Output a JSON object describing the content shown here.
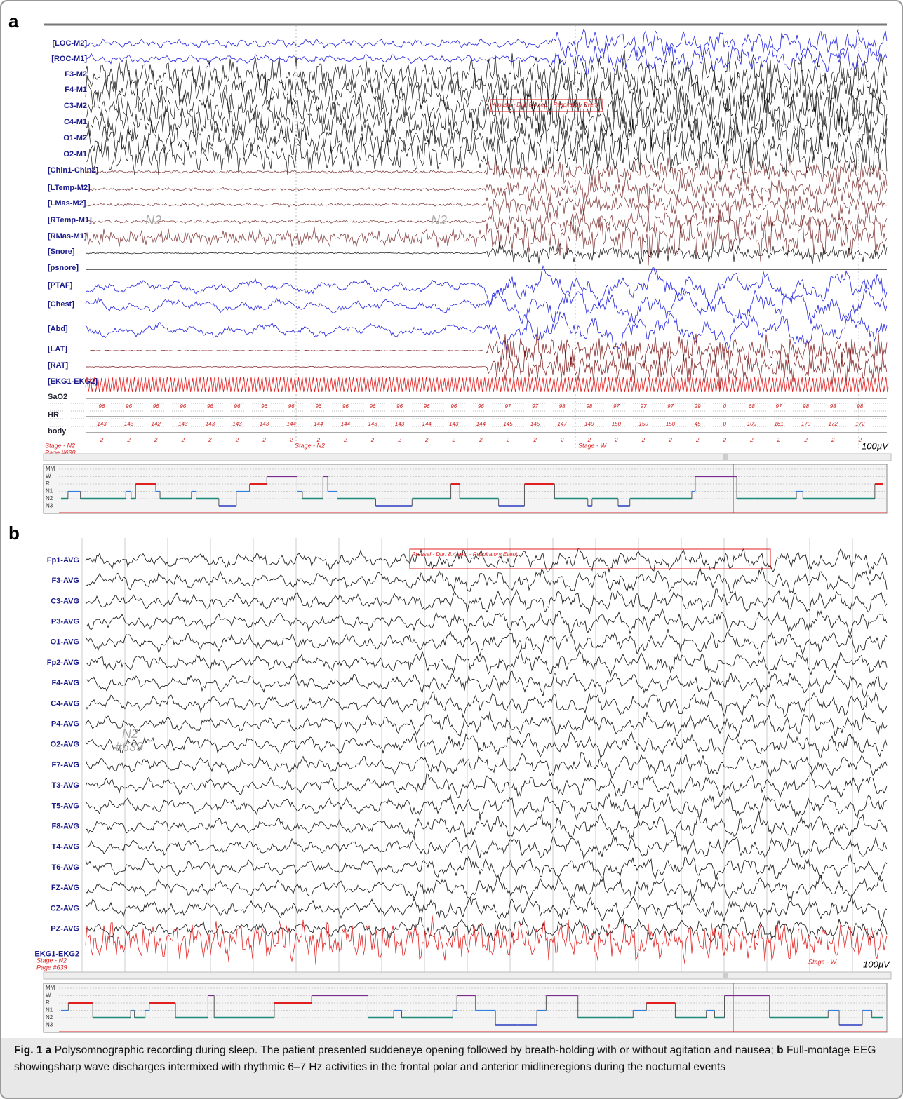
{
  "panel_a": {
    "label": "a",
    "channels": [
      "[LOC-M2]",
      "[ROC-M1]",
      "F3-M2",
      "F4-M1",
      "C3-M2",
      "C4-M1",
      "O1-M2",
      "O2-M1",
      "[Chin1-Chin2]",
      "[LTemp-M2]",
      "[LMas-M2]",
      "[RTemp-M1]",
      "[RMas-M1]",
      "[Snore]",
      "[psnore]",
      "[PTAF]",
      "[Chest]",
      "[Abd]",
      "[LAT]",
      "[RAT]",
      "[EKG1-EKG2]",
      "SaO2",
      "HR",
      "body"
    ],
    "annotation": "Arousal - Dur: 8.4 sec. - Respiratory Event",
    "ghost_stage": [
      "N2",
      "N2"
    ],
    "sao2_values": [
      96,
      96,
      96,
      96,
      96,
      96,
      96,
      96,
      96,
      96,
      96,
      96,
      96,
      96,
      96,
      97,
      97,
      98,
      98,
      97,
      97,
      97,
      29,
      0,
      68,
      97,
      98,
      98,
      98
    ],
    "hr_values": [
      143,
      143,
      142,
      143,
      143,
      143,
      143,
      144,
      144,
      144,
      143,
      143,
      144,
      143,
      144,
      145,
      145,
      147,
      149,
      150,
      150,
      150,
      45,
      0,
      109,
      161,
      170,
      172,
      172
    ],
    "body_values": [
      2,
      2,
      2,
      2,
      2,
      2,
      2,
      2,
      2,
      2,
      2,
      2,
      2,
      2,
      2,
      2,
      2,
      2,
      2,
      2,
      2,
      2,
      2,
      2,
      2,
      2,
      2,
      2,
      2
    ],
    "stage_markers": [
      "Stage - N2",
      "Stage - N2",
      "Stage - W"
    ],
    "page": "Page #638",
    "scale": "100µV"
  },
  "panel_b": {
    "label": "b",
    "channels": [
      "Fp1-AVG",
      "F3-AVG",
      "C3-AVG",
      "P3-AVG",
      "O1-AVG",
      "Fp2-AVG",
      "F4-AVG",
      "C4-AVG",
      "P4-AVG",
      "O2-AVG",
      "F7-AVG",
      "T3-AVG",
      "T5-AVG",
      "F8-AVG",
      "T4-AVG",
      "T6-AVG",
      "FZ-AVG",
      "CZ-AVG",
      "PZ-AVG",
      "EKG1-EKG2"
    ],
    "annotation": "Arousal - Dur: 8.4 sec. - Respiratory Event",
    "ghost_stage": "N2",
    "ghost_page": "#639",
    "stage_markers": [
      "Stage - N2",
      "Stage - W"
    ],
    "page": "Page #639",
    "scale": "100µV"
  },
  "hypnogram_levels": [
    "MM",
    "W",
    "R",
    "N1",
    "N2",
    "N3"
  ],
  "caption": {
    "fig": "Fig. 1",
    "text_a": "Polysomnographic recording during sleep. The patient presented suddeneye opening followed by breath-holding with or without agitation and nausea;",
    "text_b": "Full-montage EEG showingsharp wave discharges intermixed with rhythmic 6–7 Hz activities in the frontal polar and anterior midlineregions during the nocturnal events"
  }
}
